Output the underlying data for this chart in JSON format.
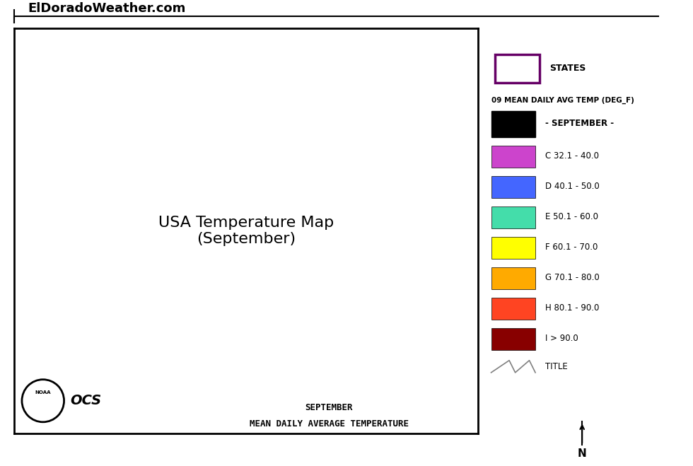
{
  "title_text": "ElDoradoWeather.com",
  "legend_title": "09 MEAN DAILY AVG TEMP (DEG_F)",
  "legend_subtitle": "- SEPTEMBER -",
  "legend_entries": [
    {
      "label": "C 32.1 - 40.0",
      "color": "#CC44CC"
    },
    {
      "label": "D 40.1 - 50.0",
      "color": "#4466FF"
    },
    {
      "label": "E 50.1 - 60.0",
      "color": "#44DDAA"
    },
    {
      "label": "F 60.1 - 70.0",
      "color": "#FFFF00"
    },
    {
      "label": "G 70.1 - 80.0",
      "color": "#FFAA00"
    },
    {
      "label": "H 80.1 - 90.0",
      "color": "#FF4422"
    },
    {
      "label": "I > 90.0",
      "color": "#880000"
    }
  ],
  "map_caption_line1": "SEPTEMBER",
  "map_caption_line2": "MEAN DAILY AVERAGE TEMPERATURE",
  "states_box_color": "#660066",
  "background_color": "#FFFFFF",
  "map_bg": "#FFFFFF",
  "border_color": "#000000",
  "noaa_text": "NOAA",
  "ocs_text": "OCS"
}
